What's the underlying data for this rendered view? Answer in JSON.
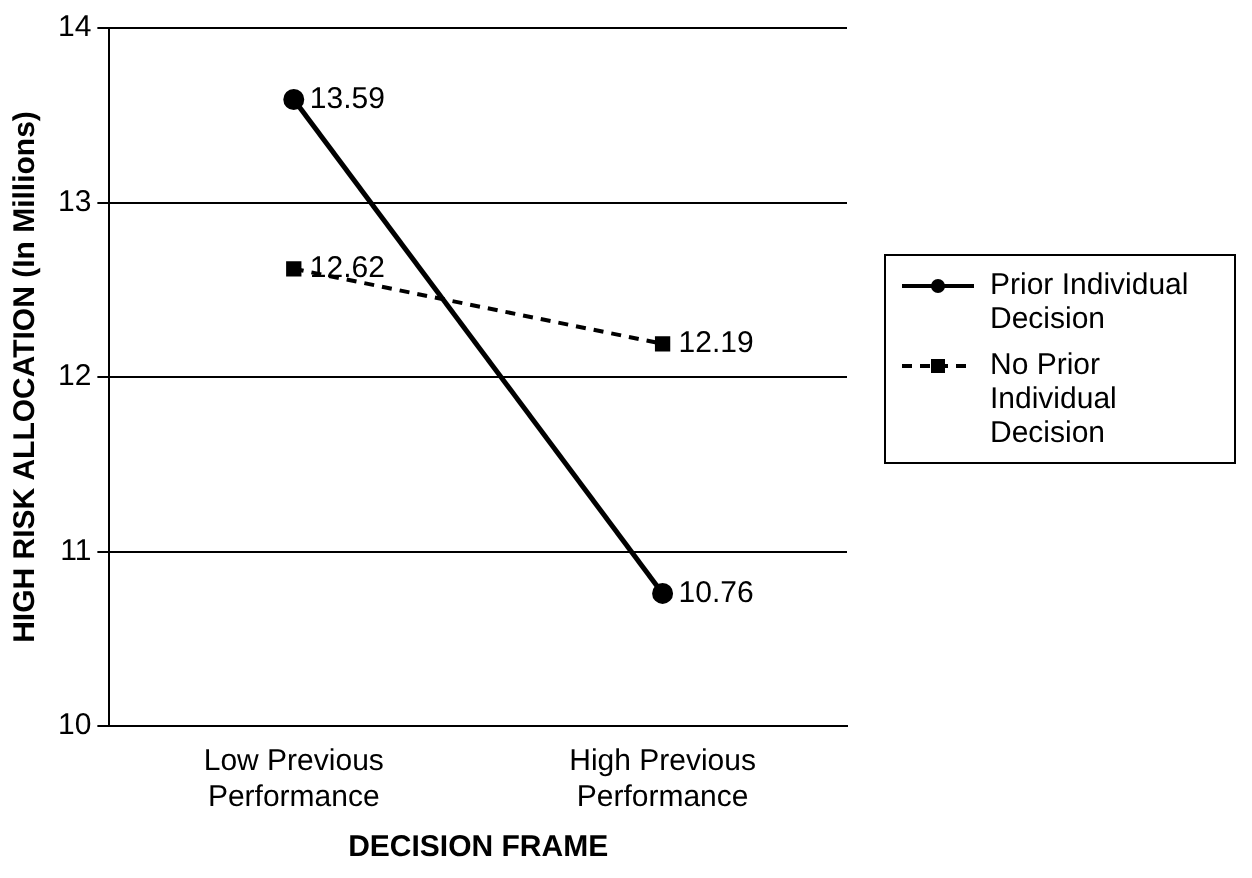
{
  "chart_data": {
    "type": "line",
    "xlabel": "DECISION FRAME",
    "ylabel": "HIGH RISK ALLOCATION (In Millions)",
    "categories": [
      "Low Previous Performance",
      "High Previous Performance"
    ],
    "series": [
      {
        "name": "Prior Individual Decision",
        "color": "#000000",
        "values": [
          13.59,
          10.76
        ],
        "marker": "circle",
        "line_style": "solid"
      },
      {
        "name": "No Prior Individual Decision",
        "color": "#000000",
        "values": [
          12.62,
          12.19
        ],
        "marker": "square",
        "line_style": "dashed"
      }
    ],
    "ylim": [
      10,
      14
    ],
    "yticks": [
      10,
      11,
      12,
      13,
      14
    ],
    "grid": "y",
    "legend": "right",
    "data_labels": true
  }
}
